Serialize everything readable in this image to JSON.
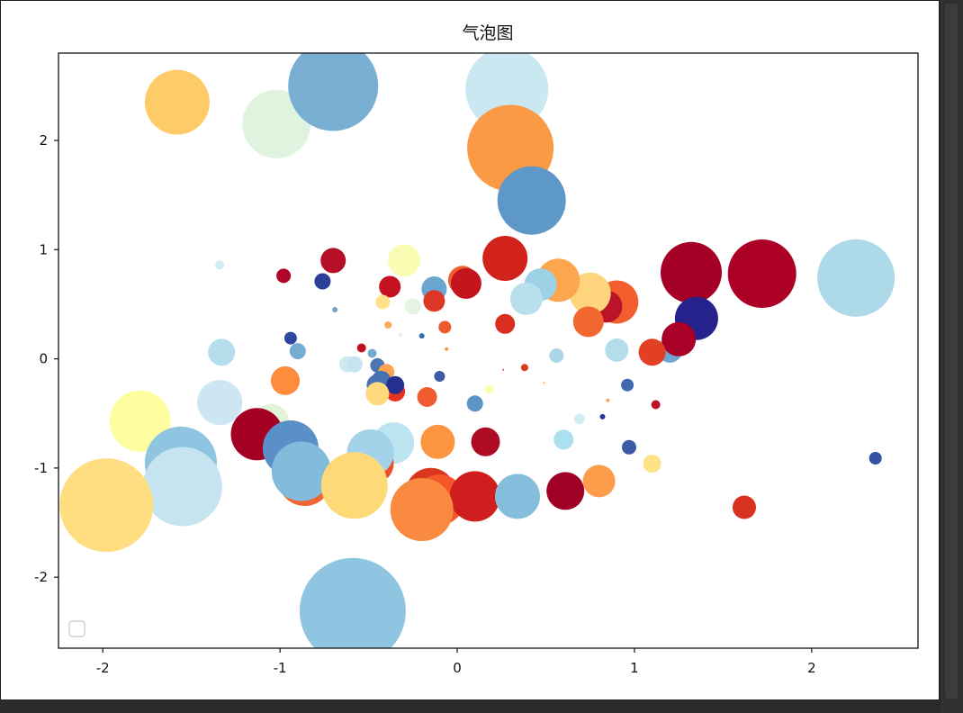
{
  "chart_data": {
    "type": "scatter",
    "subtype": "bubble",
    "title": "气泡图",
    "xlabel": "",
    "ylabel": "",
    "xlim": [
      -2.25,
      2.6
    ],
    "ylim": [
      -2.65,
      2.8
    ],
    "xticks": [
      -2,
      -1,
      0,
      1,
      2
    ],
    "yticks": [
      -2,
      -1,
      0,
      1,
      2
    ],
    "grid": false,
    "legend": {
      "position": "lower-left",
      "entries": []
    },
    "colormap": "RdYlBu",
    "points": [
      {
        "x": -1.58,
        "y": 2.35,
        "r": 36,
        "color": "#fecb69"
      },
      {
        "x": -1.02,
        "y": 2.15,
        "r": 38,
        "color": "#e0f3df"
      },
      {
        "x": -0.7,
        "y": 2.5,
        "r": 50,
        "color": "#78afd3"
      },
      {
        "x": 0.28,
        "y": 2.47,
        "r": 46,
        "color": "#cae8f2"
      },
      {
        "x": 0.3,
        "y": 1.93,
        "r": 48,
        "color": "#fb9a45"
      },
      {
        "x": 0.42,
        "y": 1.45,
        "r": 38,
        "color": "#5d98c9"
      },
      {
        "x": 2.25,
        "y": 0.74,
        "r": 43,
        "color": "#aed9e8"
      },
      {
        "x": 1.72,
        "y": 0.78,
        "r": 38,
        "color": "#ac0025"
      },
      {
        "x": 1.32,
        "y": 0.79,
        "r": 34,
        "color": "#a40025"
      },
      {
        "x": 1.35,
        "y": 0.37,
        "r": 24,
        "color": "#26228d"
      },
      {
        "x": 1.2,
        "y": 0.08,
        "r": 14,
        "color": "#6fa5d0"
      },
      {
        "x": 1.25,
        "y": 0.18,
        "r": 19,
        "color": "#a80026"
      },
      {
        "x": 1.1,
        "y": 0.06,
        "r": 15,
        "color": "#e33f22"
      },
      {
        "x": 0.9,
        "y": 0.52,
        "r": 24,
        "color": "#f25e2e"
      },
      {
        "x": 0.84,
        "y": 0.48,
        "r": 18,
        "color": "#bb1428"
      },
      {
        "x": 0.75,
        "y": 0.6,
        "r": 23,
        "color": "#fed57c"
      },
      {
        "x": 0.57,
        "y": 0.72,
        "r": 24,
        "color": "#fca650"
      },
      {
        "x": 0.47,
        "y": 0.68,
        "r": 18,
        "color": "#9dd1e5"
      },
      {
        "x": 0.39,
        "y": 0.55,
        "r": 18,
        "color": "#b8dfec"
      },
      {
        "x": 0.27,
        "y": 0.92,
        "r": 25,
        "color": "#d1221b"
      },
      {
        "x": 0.74,
        "y": 0.34,
        "r": 17,
        "color": "#f26630"
      },
      {
        "x": 0.9,
        "y": 0.08,
        "r": 13,
        "color": "#b5dcea"
      },
      {
        "x": 0.56,
        "y": 0.03,
        "r": 8,
        "color": "#abd6e8"
      },
      {
        "x": 0.27,
        "y": 0.32,
        "r": 11,
        "color": "#da2c1f"
      },
      {
        "x": 0.03,
        "y": 0.72,
        "r": 16,
        "color": "#f15e2e"
      },
      {
        "x": 0.05,
        "y": 0.69,
        "r": 17,
        "color": "#c3151e"
      },
      {
        "x": -0.13,
        "y": 0.64,
        "r": 14,
        "color": "#6aa6cf"
      },
      {
        "x": -0.13,
        "y": 0.53,
        "r": 12,
        "color": "#dc3624"
      },
      {
        "x": -0.07,
        "y": 0.29,
        "r": 7,
        "color": "#ef5a2d"
      },
      {
        "x": -0.3,
        "y": 0.9,
        "r": 18,
        "color": "#fbfcb4"
      },
      {
        "x": -0.38,
        "y": 0.66,
        "r": 12,
        "color": "#c41220"
      },
      {
        "x": -0.42,
        "y": 0.52,
        "r": 8,
        "color": "#fee189"
      },
      {
        "x": -0.25,
        "y": 0.48,
        "r": 9,
        "color": "#e4f4e2"
      },
      {
        "x": -0.39,
        "y": 0.31,
        "r": 4,
        "color": "#fcaa5a"
      },
      {
        "x": -0.32,
        "y": 0.22,
        "r": 2,
        "color": "#e6f5df"
      },
      {
        "x": -0.7,
        "y": 0.9,
        "r": 14,
        "color": "#b40f27"
      },
      {
        "x": -0.76,
        "y": 0.71,
        "r": 9,
        "color": "#2b3f99"
      },
      {
        "x": -0.98,
        "y": 0.76,
        "r": 8,
        "color": "#b1062a"
      },
      {
        "x": -0.69,
        "y": 0.45,
        "r": 3,
        "color": "#6aa0cf"
      },
      {
        "x": -1.34,
        "y": 0.86,
        "r": 5,
        "color": "#d0ebf3"
      },
      {
        "x": -0.94,
        "y": 0.19,
        "r": 7,
        "color": "#30479f"
      },
      {
        "x": -0.9,
        "y": 0.07,
        "r": 9,
        "color": "#74add1"
      },
      {
        "x": -1.33,
        "y": 0.06,
        "r": 15,
        "color": "#b4deec"
      },
      {
        "x": -0.54,
        "y": 0.1,
        "r": 5,
        "color": "#c1121f"
      },
      {
        "x": -0.48,
        "y": 0.05,
        "r": 5,
        "color": "#73abd1"
      },
      {
        "x": -0.2,
        "y": 0.21,
        "r": 3,
        "color": "#3a6cb0"
      },
      {
        "x": -0.06,
        "y": 0.09,
        "r": 2,
        "color": "#fb9844"
      },
      {
        "x": -0.62,
        "y": -0.05,
        "r": 9,
        "color": "#cfe9f3"
      },
      {
        "x": -0.58,
        "y": -0.05,
        "r": 9,
        "color": "#c4e5f0"
      },
      {
        "x": -0.45,
        "y": -0.06,
        "r": 8,
        "color": "#4b75b3"
      },
      {
        "x": -0.4,
        "y": -0.12,
        "r": 9,
        "color": "#fca452"
      },
      {
        "x": -0.43,
        "y": -0.2,
        "r": 11,
        "color": "#4673b3"
      },
      {
        "x": -0.45,
        "y": -0.24,
        "r": 12,
        "color": "#4a71b2"
      },
      {
        "x": -0.35,
        "y": -0.3,
        "r": 11,
        "color": "#e5341f"
      },
      {
        "x": -0.35,
        "y": -0.24,
        "r": 10,
        "color": "#242f8f"
      },
      {
        "x": -0.45,
        "y": -0.32,
        "r": 13,
        "color": "#fed97e"
      },
      {
        "x": -0.97,
        "y": -0.2,
        "r": 16,
        "color": "#fd8c3c"
      },
      {
        "x": -0.17,
        "y": -0.35,
        "r": 11,
        "color": "#f05b2f"
      },
      {
        "x": -0.1,
        "y": -0.16,
        "r": 6,
        "color": "#3c5ba6"
      },
      {
        "x": 0.18,
        "y": -0.28,
        "r": 5,
        "color": "#fbfdb0"
      },
      {
        "x": 0.1,
        "y": -0.41,
        "r": 9,
        "color": "#5d93c6"
      },
      {
        "x": 0.26,
        "y": -0.1,
        "r": 1,
        "color": "#e04c24"
      },
      {
        "x": 0.38,
        "y": -0.08,
        "r": 4,
        "color": "#da3a22"
      },
      {
        "x": 0.49,
        "y": -0.22,
        "r": 1,
        "color": "#fd9b47"
      },
      {
        "x": 0.69,
        "y": -0.55,
        "r": 6,
        "color": "#d3eef2"
      },
      {
        "x": 0.82,
        "y": -0.53,
        "r": 3,
        "color": "#30349a"
      },
      {
        "x": 0.85,
        "y": -0.38,
        "r": 2,
        "color": "#fba051"
      },
      {
        "x": 0.96,
        "y": -0.24,
        "r": 7,
        "color": "#4069af"
      },
      {
        "x": 1.12,
        "y": -0.42,
        "r": 5,
        "color": "#b71326"
      },
      {
        "x": 0.6,
        "y": -0.74,
        "r": 11,
        "color": "#ade0ef"
      },
      {
        "x": 0.97,
        "y": -0.81,
        "r": 8,
        "color": "#3a5ba8"
      },
      {
        "x": 1.1,
        "y": -0.96,
        "r": 10,
        "color": "#fee386"
      },
      {
        "x": 2.36,
        "y": -0.91,
        "r": 7,
        "color": "#3052a0"
      },
      {
        "x": 0.16,
        "y": -0.76,
        "r": 16,
        "color": "#ae0b25"
      },
      {
        "x": -0.11,
        "y": -0.76,
        "r": 19,
        "color": "#fd943f"
      },
      {
        "x": -1.79,
        "y": -0.57,
        "r": 34,
        "color": "#fefd9f"
      },
      {
        "x": -1.34,
        "y": -0.4,
        "r": 25,
        "color": "#cce6f2"
      },
      {
        "x": -1.05,
        "y": -0.58,
        "r": 20,
        "color": "#e1f3d9"
      },
      {
        "x": -1.13,
        "y": -0.69,
        "r": 29,
        "color": "#a30023"
      },
      {
        "x": -0.94,
        "y": -0.82,
        "r": 31,
        "color": "#5890c7"
      },
      {
        "x": -0.36,
        "y": -0.77,
        "r": 23,
        "color": "#bde4f1"
      },
      {
        "x": -0.47,
        "y": -0.96,
        "r": 22,
        "color": "#ee4f2a"
      },
      {
        "x": -0.49,
        "y": -0.86,
        "r": 26,
        "color": "#a2d3e8"
      },
      {
        "x": -0.86,
        "y": -1.1,
        "r": 30,
        "color": "#f16533"
      },
      {
        "x": -0.88,
        "y": -1.03,
        "r": 33,
        "color": "#83bbdd"
      },
      {
        "x": -0.58,
        "y": -1.16,
        "r": 37,
        "color": "#fed978"
      },
      {
        "x": -1.56,
        "y": -0.95,
        "r": 40,
        "color": "#8ec5e1"
      },
      {
        "x": -1.55,
        "y": -1.17,
        "r": 44,
        "color": "#c5e4f0"
      },
      {
        "x": -1.98,
        "y": -1.34,
        "r": 52,
        "color": "#fede81"
      },
      {
        "x": -0.15,
        "y": -1.23,
        "r": 28,
        "color": "#db3620"
      },
      {
        "x": -0.1,
        "y": -1.29,
        "r": 28,
        "color": "#f4572b"
      },
      {
        "x": 0.1,
        "y": -1.26,
        "r": 28,
        "color": "#cf1e1d"
      },
      {
        "x": -0.2,
        "y": -1.38,
        "r": 35,
        "color": "#fa8a3f"
      },
      {
        "x": 0.34,
        "y": -1.26,
        "r": 25,
        "color": "#85bedd"
      },
      {
        "x": 0.61,
        "y": -1.21,
        "r": 21,
        "color": "#a00026"
      },
      {
        "x": 0.8,
        "y": -1.12,
        "r": 18,
        "color": "#fd9d4b"
      },
      {
        "x": 1.62,
        "y": -1.36,
        "r": 13,
        "color": "#d8311f"
      },
      {
        "x": -0.59,
        "y": -2.31,
        "r": 59,
        "color": "#8fc5e0"
      }
    ]
  }
}
